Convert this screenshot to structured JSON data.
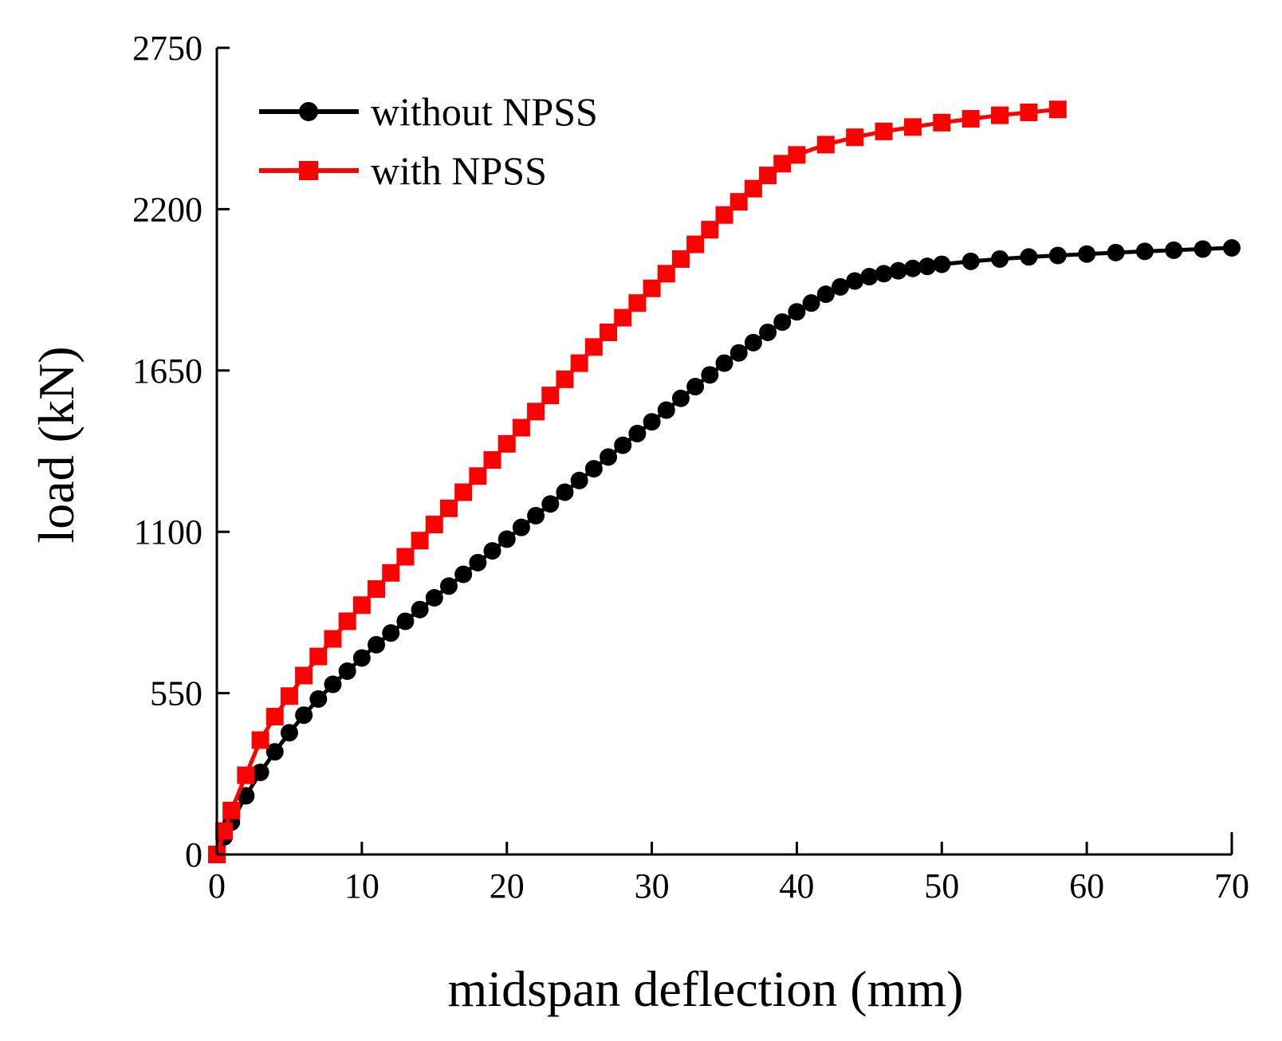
{
  "chart_data": {
    "type": "line",
    "title": "",
    "xlabel": "midspan deflection (mm)",
    "ylabel": "load (kN)",
    "xlim": [
      0,
      70
    ],
    "ylim": [
      0,
      2750
    ],
    "xticks": [
      0,
      10,
      20,
      30,
      40,
      50,
      60,
      70
    ],
    "yticks": [
      0,
      550,
      1100,
      1650,
      2200,
      2750
    ],
    "grid": false,
    "legend_position": "top-left",
    "series": [
      {
        "name": "without NPSS",
        "color": "#000000",
        "marker": "circle",
        "x": [
          0,
          0.5,
          1,
          2,
          3,
          4,
          5,
          6,
          7,
          8,
          9,
          10,
          11,
          12,
          13,
          14,
          15,
          16,
          17,
          18,
          19,
          20,
          21,
          22,
          23,
          24,
          25,
          26,
          27,
          28,
          29,
          30,
          31,
          32,
          33,
          34,
          35,
          36,
          37,
          38,
          39,
          40,
          41,
          42,
          43,
          44,
          45,
          46,
          47,
          48,
          49,
          50,
          52,
          54,
          56,
          58,
          60,
          62,
          64,
          66,
          68,
          70
        ],
        "y": [
          0,
          60,
          110,
          200,
          280,
          350,
          415,
          475,
          530,
          580,
          625,
          670,
          715,
          755,
          795,
          835,
          875,
          915,
          955,
          995,
          1035,
          1075,
          1115,
          1155,
          1195,
          1235,
          1275,
          1315,
          1355,
          1395,
          1435,
          1475,
          1515,
          1555,
          1595,
          1635,
          1675,
          1710,
          1745,
          1780,
          1815,
          1850,
          1880,
          1910,
          1935,
          1955,
          1970,
          1980,
          1990,
          1998,
          2005,
          2012,
          2022,
          2030,
          2037,
          2042,
          2047,
          2052,
          2056,
          2060,
          2064,
          2068
        ]
      },
      {
        "name": "with NPSS",
        "color": "#ff0000",
        "marker": "square",
        "x": [
          0,
          0.5,
          1,
          2,
          3,
          4,
          5,
          6,
          7,
          8,
          9,
          10,
          11,
          12,
          13,
          14,
          15,
          16,
          17,
          18,
          19,
          20,
          21,
          22,
          23,
          24,
          25,
          26,
          27,
          28,
          29,
          30,
          31,
          32,
          33,
          34,
          35,
          36,
          37,
          38,
          39,
          40,
          42,
          44,
          46,
          48,
          50,
          52,
          54,
          56,
          58
        ],
        "y": [
          0,
          80,
          150,
          270,
          390,
          470,
          540,
          610,
          675,
          735,
          795,
          850,
          905,
          960,
          1015,
          1070,
          1125,
          1180,
          1235,
          1290,
          1345,
          1400,
          1455,
          1510,
          1565,
          1620,
          1675,
          1730,
          1780,
          1830,
          1880,
          1930,
          1980,
          2030,
          2080,
          2130,
          2180,
          2225,
          2270,
          2315,
          2355,
          2385,
          2420,
          2445,
          2465,
          2480,
          2495,
          2508,
          2520,
          2530,
          2540
        ]
      }
    ]
  }
}
